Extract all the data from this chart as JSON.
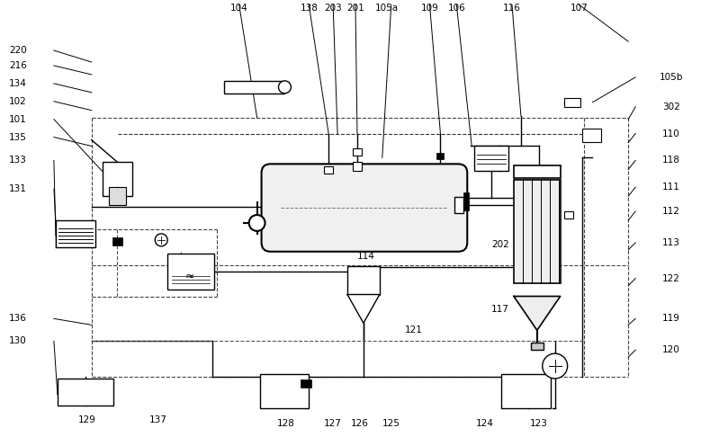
{
  "bg_color": "#ffffff",
  "line_color": "#000000",
  "dashed_color": "#555555",
  "fig_width": 7.79,
  "fig_height": 4.86,
  "top_labels": [
    [
      265,
      8,
      "104"
    ],
    [
      343,
      8,
      "138"
    ],
    [
      370,
      8,
      "203"
    ],
    [
      395,
      8,
      "201"
    ],
    [
      430,
      8,
      "105a"
    ],
    [
      478,
      8,
      "109"
    ],
    [
      508,
      8,
      "106"
    ],
    [
      570,
      8,
      "116"
    ],
    [
      645,
      8,
      "107"
    ]
  ],
  "left_labels": [
    [
      18,
      55,
      "220"
    ],
    [
      18,
      72,
      "216"
    ],
    [
      18,
      92,
      "134"
    ],
    [
      18,
      112,
      "102"
    ],
    [
      18,
      132,
      "101"
    ],
    [
      18,
      152,
      "135"
    ],
    [
      18,
      178,
      "133"
    ],
    [
      18,
      210,
      "131"
    ],
    [
      18,
      355,
      "136"
    ],
    [
      18,
      380,
      "130"
    ]
  ],
  "right_labels": [
    [
      748,
      85,
      "105b"
    ],
    [
      748,
      118,
      "302"
    ],
    [
      748,
      148,
      "110"
    ],
    [
      748,
      178,
      "118"
    ],
    [
      748,
      208,
      "111"
    ],
    [
      748,
      235,
      "112"
    ],
    [
      748,
      270,
      "113"
    ],
    [
      748,
      310,
      "122"
    ],
    [
      748,
      355,
      "119"
    ],
    [
      748,
      390,
      "120"
    ]
  ],
  "bottom_labels": [
    [
      95,
      468,
      "129"
    ],
    [
      175,
      468,
      "137"
    ],
    [
      317,
      472,
      "128"
    ],
    [
      370,
      472,
      "127"
    ],
    [
      400,
      472,
      "126"
    ],
    [
      435,
      472,
      "125"
    ],
    [
      540,
      472,
      "124"
    ],
    [
      600,
      472,
      "123"
    ]
  ],
  "inside_labels": [
    [
      407,
      285,
      "114"
    ],
    [
      557,
      272,
      "202"
    ],
    [
      557,
      345,
      "117"
    ],
    [
      460,
      368,
      "121"
    ]
  ]
}
